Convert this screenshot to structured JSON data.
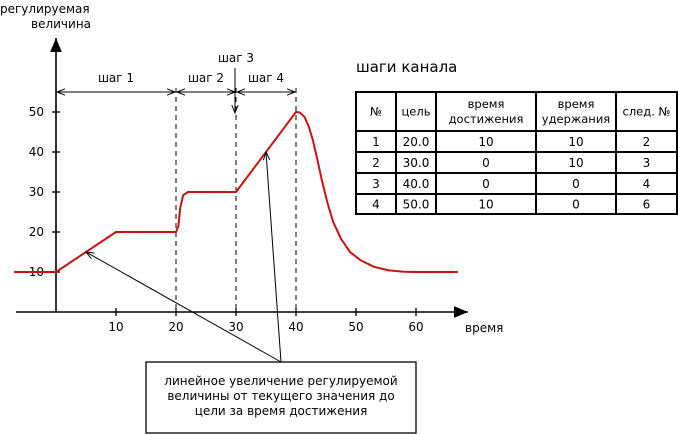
{
  "chart_data": {
    "type": "line",
    "ylabel": "регулируемая величина",
    "ylabel_lines": [
      "регулируемая",
      "величина"
    ],
    "xlabel": "время",
    "xlim": [
      -7,
      68
    ],
    "ylim": [
      0,
      62
    ],
    "x_ticks": [
      10,
      20,
      30,
      40,
      50,
      60
    ],
    "y_ticks": [
      10,
      20,
      30,
      40,
      50
    ],
    "series": [
      {
        "name": "регулируемая величина",
        "color": "#cc1111",
        "points": [
          [
            -7,
            10
          ],
          [
            0,
            10
          ],
          [
            10,
            20
          ],
          [
            20,
            20
          ],
          [
            20.4,
            21.5
          ],
          [
            20.7,
            26
          ],
          [
            21.2,
            29.2
          ],
          [
            22,
            30
          ],
          [
            30,
            30
          ],
          [
            40,
            50
          ],
          [
            40.6,
            49.9
          ],
          [
            41.4,
            48.8
          ],
          [
            42.1,
            46.5
          ],
          [
            42.8,
            43
          ],
          [
            43.5,
            38.5
          ],
          [
            44.3,
            33
          ],
          [
            45.2,
            27.5
          ],
          [
            46.2,
            22.5
          ],
          [
            47.5,
            18.3
          ],
          [
            49,
            15
          ],
          [
            50.8,
            12.9
          ],
          [
            53,
            11.3
          ],
          [
            55.5,
            10.4
          ],
          [
            58,
            10.05
          ],
          [
            60,
            10
          ],
          [
            67,
            10
          ]
        ]
      }
    ],
    "steps": [
      {
        "label": "шаг 1",
        "from": 0,
        "to": 20
      },
      {
        "label": "шаг 2",
        "from": 20,
        "to": 30
      },
      {
        "label": "шаг 3",
        "at": 30
      },
      {
        "label": "шаг 4",
        "from": 30,
        "to": 40
      }
    ],
    "step_boundaries": [
      20,
      30,
      40
    ],
    "annotation": {
      "lines": [
        "линейное увеличение регулируемой",
        "величины от текущего значения до",
        "цели за время достижения"
      ],
      "targets": [
        [
          5,
          15
        ],
        [
          35,
          40
        ]
      ]
    }
  },
  "table": {
    "title": "шаги канала",
    "headers": [
      [
        "№"
      ],
      [
        "цель"
      ],
      [
        "время",
        "достижения"
      ],
      [
        "время",
        "удержания"
      ],
      [
        "след. №"
      ]
    ],
    "rows": [
      [
        "1",
        "20.0",
        "10",
        "10",
        "2"
      ],
      [
        "2",
        "30.0",
        "0",
        "10",
        "3"
      ],
      [
        "3",
        "40.0",
        "0",
        "0",
        "4"
      ],
      [
        "4",
        "50.0",
        "10",
        "0",
        "6"
      ]
    ]
  }
}
